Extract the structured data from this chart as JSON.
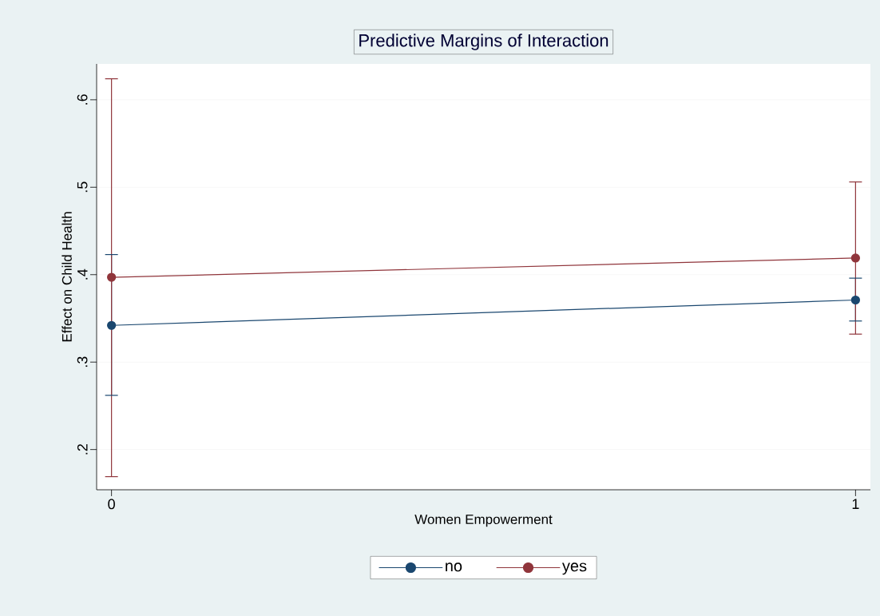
{
  "chart_data": {
    "type": "line",
    "title": "Predictive Margins of Interaction",
    "xlabel": "Women Empowerment",
    "ylabel": "Effect on Child Health",
    "x": [
      0,
      1
    ],
    "series": [
      {
        "name": "no",
        "color": "#1a476f",
        "values": [
          0.342,
          0.371
        ],
        "errors": [
          [
            0.262,
            0.423
          ],
          [
            0.347,
            0.396
          ]
        ]
      },
      {
        "name": "yes",
        "color": "#90353b",
        "values": [
          0.397,
          0.419
        ],
        "errors": [
          [
            0.169,
            0.624
          ],
          [
            0.332,
            0.506
          ]
        ]
      }
    ],
    "xlim": [
      -0.02,
      1.02
    ],
    "ylim": [
      0.154,
      0.641
    ],
    "xticks": [
      0,
      1
    ],
    "yticks": [
      {
        "value": 0.2,
        "label": ".2"
      },
      {
        "value": 0.3,
        "label": ".3"
      },
      {
        "value": 0.4,
        "label": ".4"
      },
      {
        "value": 0.5,
        "label": ".5"
      },
      {
        "value": 0.6,
        "label": ".6"
      }
    ],
    "grid": "y",
    "legend": "bottom",
    "marker": "circle",
    "line_style": "solid"
  }
}
